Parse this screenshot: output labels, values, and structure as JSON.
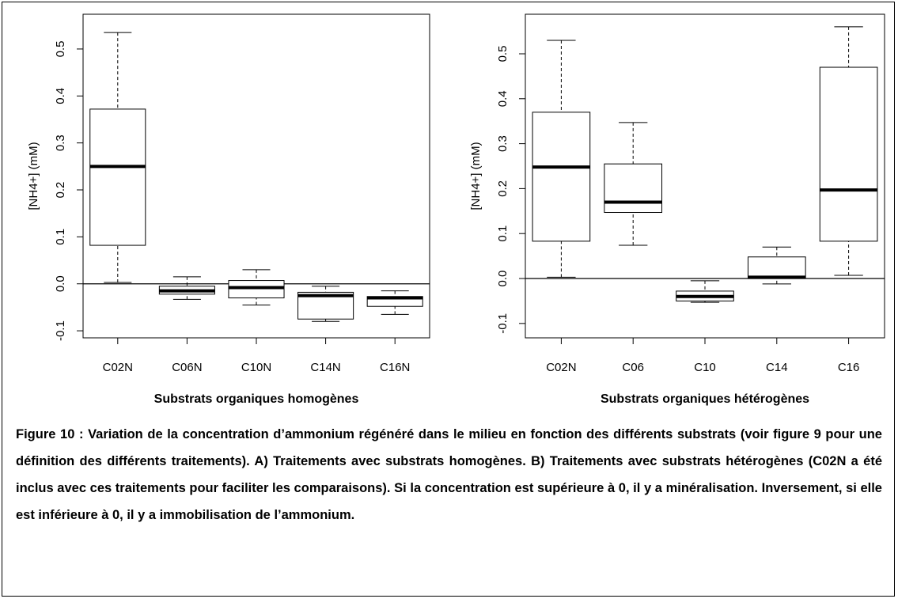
{
  "chart_data": [
    {
      "type": "box",
      "ylabel": "[NH4+] (mM)",
      "xlabel": "Substrats organiques homogènes",
      "categories": [
        "C02N",
        "C06N",
        "C10N",
        "C14N",
        "C16N"
      ],
      "min": [
        0.003,
        -0.033,
        -0.045,
        -0.08,
        -0.065
      ],
      "q1": [
        0.082,
        -0.022,
        -0.03,
        -0.075,
        -0.048
      ],
      "median": [
        0.25,
        -0.015,
        -0.008,
        -0.025,
        -0.03
      ],
      "q3": [
        0.372,
        -0.005,
        0.007,
        -0.018,
        -0.027
      ],
      "max": [
        0.535,
        0.015,
        0.03,
        -0.005,
        -0.015
      ],
      "hline": 0,
      "ylim": [
        -0.115,
        0.574
      ],
      "yticks": [
        -0.1,
        {
          "value": 0,
          "label": "0.0"
        },
        0.1,
        0.2,
        0.3,
        0.4,
        0.5
      ]
    },
    {
      "type": "box",
      "ylabel": "[NH4+] (mM)",
      "xlabel": "Substrats organiques hétérogènes",
      "categories": [
        "C02N",
        "C06",
        "C10",
        "C14",
        "C16"
      ],
      "min": [
        0.003,
        0.074,
        -0.053,
        -0.012,
        0.007
      ],
      "q1": [
        0.083,
        0.147,
        -0.05,
        0.0,
        0.083
      ],
      "median": [
        0.248,
        0.17,
        -0.04,
        0.003,
        0.197
      ],
      "q3": [
        0.37,
        0.255,
        -0.028,
        0.048,
        0.47
      ],
      "max": [
        0.53,
        0.347,
        -0.005,
        0.07,
        0.56
      ],
      "hline": 0,
      "ylim": [
        -0.132,
        0.588
      ],
      "yticks": [
        -0.1,
        {
          "value": 0,
          "label": "0.0"
        },
        0.1,
        0.2,
        0.3,
        0.4,
        0.5
      ]
    }
  ],
  "caption": "Figure 10 : Variation de la concentration d’ammonium régénéré dans le milieu en fonction des différents substrats (voir figure 9 pour une définition des différents traitements). A) Traitements avec substrats homogènes. B) Traitements avec substrats hétérogènes (C02N a été inclus avec ces traitements pour faciliter les comparaisons). Si la concentration est supérieure à 0, il y a minéralisation. Inversement, si elle est inférieure à 0, il y a immobilisation de l’ammonium."
}
